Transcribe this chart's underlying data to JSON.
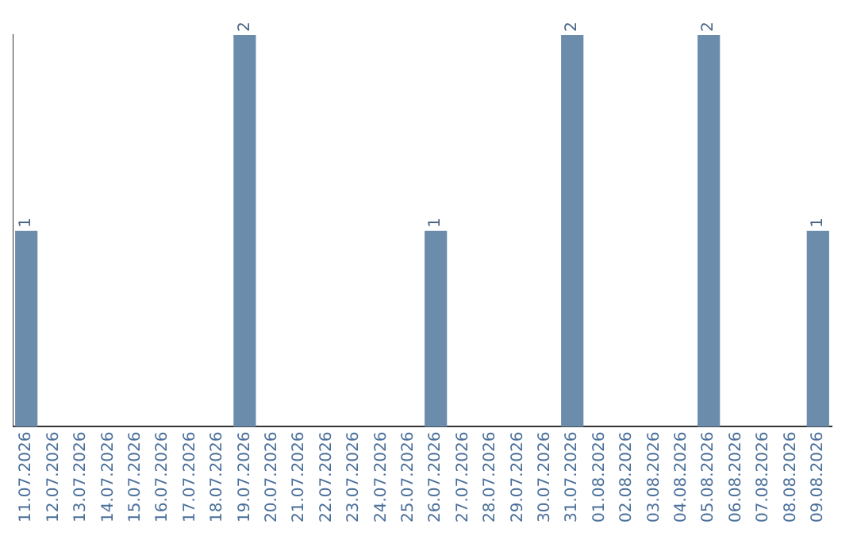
{
  "chart_data": {
    "type": "bar",
    "categories": [
      "11.07.2026",
      "12.07.2026",
      "13.07.2026",
      "14.07.2026",
      "15.07.2026",
      "16.07.2026",
      "17.07.2026",
      "18.07.2026",
      "19.07.2026",
      "20.07.2026",
      "21.07.2026",
      "22.07.2026",
      "23.07.2026",
      "24.07.2026",
      "25.07.2026",
      "26.07.2026",
      "27.07.2026",
      "28.07.2026",
      "29.07.2026",
      "30.07.2026",
      "31.07.2026",
      "01.08.2026",
      "02.08.2026",
      "03.08.2026",
      "04.08.2026",
      "05.08.2026",
      "06.08.2026",
      "07.08.2026",
      "08.08.2026",
      "09.08.2026"
    ],
    "values": [
      1,
      0,
      0,
      0,
      0,
      0,
      0,
      0,
      2,
      0,
      0,
      0,
      0,
      0,
      0,
      1,
      0,
      0,
      0,
      0,
      2,
      0,
      0,
      0,
      0,
      2,
      0,
      0,
      0,
      1
    ],
    "value_labels": [
      "1",
      null,
      null,
      null,
      null,
      null,
      null,
      null,
      "2",
      null,
      null,
      null,
      null,
      null,
      null,
      "1",
      null,
      null,
      null,
      null,
      "2",
      null,
      null,
      null,
      null,
      "2",
      null,
      null,
      null,
      "1"
    ],
    "color": "#6b8cab",
    "grid": false,
    "legend": false,
    "tick_labels": "x"
  }
}
